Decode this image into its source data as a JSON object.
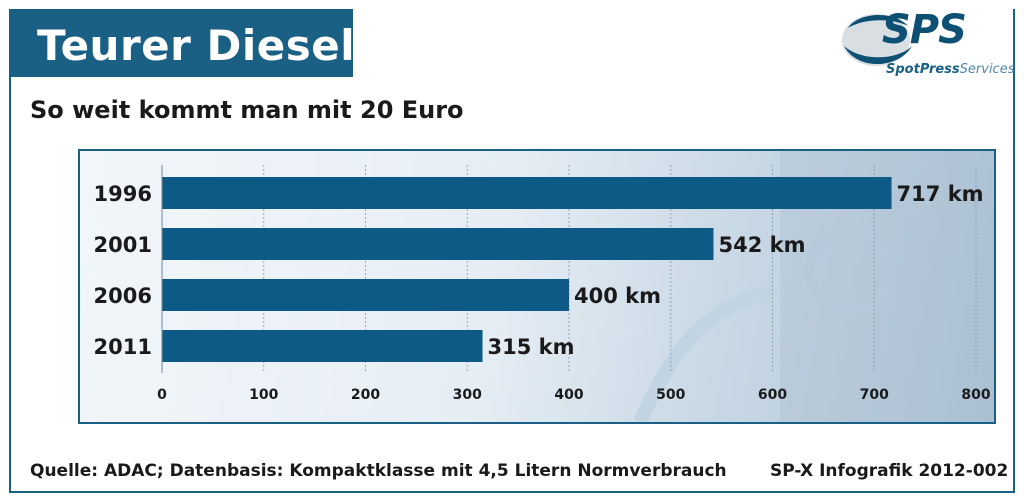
{
  "header": {
    "title": "Teurer Diesel",
    "subtitle": "So weit kommt man mit 20 Euro"
  },
  "logo": {
    "mark": "SPS",
    "text_a": "SpotPress",
    "text_b": "Services",
    "icon": "sps-swoosh-logo-icon"
  },
  "colors": {
    "brand": "#1a5f84",
    "bar": "#0e5a86"
  },
  "chart_data": {
    "type": "bar",
    "orientation": "horizontal",
    "categories": [
      "1996",
      "2001",
      "2006",
      "2011"
    ],
    "values": [
      717,
      542,
      400,
      315
    ],
    "value_labels": [
      "717 km",
      "542 km",
      "400 km",
      "315 km"
    ],
    "xticks": [
      "0",
      "100",
      "200",
      "300",
      "400",
      "500",
      "600",
      "700",
      "800"
    ],
    "xlim": [
      0,
      800
    ],
    "title": "So weit kommt man mit 20 Euro",
    "xlabel": "",
    "ylabel": "",
    "grid": true
  },
  "footer": {
    "source": "Quelle: ADAC; Datenbasis: Kompaktklasse mit 4,5 Litern Normverbrauch",
    "credit": "SP-X Infografik 2012-002"
  }
}
